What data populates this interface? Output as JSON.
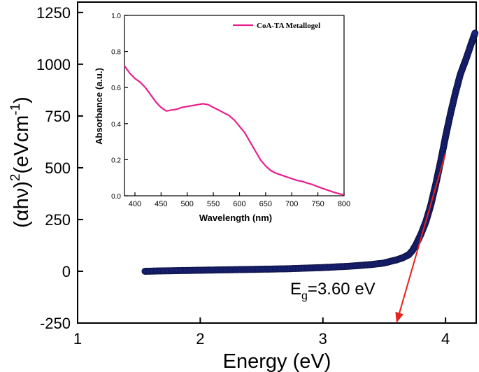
{
  "chart_data": [
    {
      "type": "scatter",
      "name": "tauc-plot",
      "xlabel": "Energy (eV)",
      "ylabel_parts": [
        "(αhν)",
        "2",
        "(eVcm",
        "-1",
        ")"
      ],
      "xlim": [
        1.0,
        4.25
      ],
      "ylim": [
        -250,
        1300
      ],
      "xticks": [
        1,
        2,
        3,
        4
      ],
      "yticks": [
        -250,
        0,
        250,
        500,
        750,
        1000,
        1250
      ],
      "marker_color": "#1a237e",
      "series": [
        {
          "name": "(αhν)^2",
          "points": [
            [
              1.55,
              0
            ],
            [
              1.62,
              1
            ],
            [
              1.7,
              2
            ],
            [
              1.8,
              3
            ],
            [
              1.9,
              4
            ],
            [
              2.0,
              5
            ],
            [
              2.1,
              6
            ],
            [
              2.2,
              7
            ],
            [
              2.3,
              8
            ],
            [
              2.4,
              9
            ],
            [
              2.5,
              10
            ],
            [
              2.6,
              11
            ],
            [
              2.7,
              12
            ],
            [
              2.8,
              14
            ],
            [
              2.9,
              16
            ],
            [
              3.0,
              18
            ],
            [
              3.1,
              21
            ],
            [
              3.2,
              24
            ],
            [
              3.3,
              28
            ],
            [
              3.4,
              33
            ],
            [
              3.5,
              40
            ],
            [
              3.55,
              48
            ],
            [
              3.6,
              55
            ],
            [
              3.65,
              65
            ],
            [
              3.7,
              80
            ],
            [
              3.73,
              100
            ],
            [
              3.76,
              130
            ],
            [
              3.8,
              180
            ],
            [
              3.84,
              240
            ],
            [
              3.88,
              320
            ],
            [
              3.92,
              420
            ],
            [
              3.96,
              530
            ],
            [
              4.0,
              650
            ],
            [
              4.04,
              760
            ],
            [
              4.08,
              860
            ],
            [
              4.12,
              950
            ],
            [
              4.17,
              1030
            ],
            [
              4.21,
              1100
            ],
            [
              4.24,
              1150
            ]
          ]
        }
      ],
      "fit_line": {
        "from": [
          4.0,
          570
        ],
        "to": [
          3.6,
          -250
        ],
        "color": "#e8221e"
      },
      "annotation": {
        "text": "E",
        "subscript": "g",
        "value": "=3.60 eV"
      }
    },
    {
      "type": "line",
      "name": "absorbance-inset",
      "xlabel": "Wavelength (nm)",
      "ylabel": "Absorbance (a.u.)",
      "xlim": [
        380,
        800
      ],
      "ylim": [
        0.0,
        1.0
      ],
      "xticks": [
        400,
        450,
        500,
        550,
        600,
        650,
        700,
        750,
        800
      ],
      "yticks": [
        0.0,
        0.2,
        0.4,
        0.6,
        0.8,
        1.0
      ],
      "ytick_labels": [
        "0.0",
        "0.2",
        "0.4",
        "0.6",
        "0.8",
        "1.0"
      ],
      "series": [
        {
          "name": "CoA-TA Metallogel",
          "color": "#e91e8c",
          "x": [
            380,
            390,
            400,
            410,
            420,
            430,
            440,
            450,
            460,
            470,
            480,
            490,
            500,
            510,
            520,
            530,
            540,
            550,
            560,
            570,
            580,
            590,
            600,
            610,
            620,
            630,
            640,
            650,
            660,
            670,
            680,
            690,
            700,
            710,
            720,
            730,
            740,
            750,
            760,
            770,
            780,
            790,
            800
          ],
          "y": [
            0.72,
            0.68,
            0.65,
            0.63,
            0.6,
            0.56,
            0.52,
            0.49,
            0.47,
            0.475,
            0.48,
            0.49,
            0.495,
            0.5,
            0.505,
            0.51,
            0.505,
            0.49,
            0.475,
            0.46,
            0.445,
            0.42,
            0.385,
            0.35,
            0.3,
            0.25,
            0.2,
            0.165,
            0.14,
            0.125,
            0.115,
            0.105,
            0.095,
            0.085,
            0.08,
            0.07,
            0.062,
            0.05,
            0.04,
            0.03,
            0.02,
            0.012,
            0.005
          ]
        }
      ]
    }
  ]
}
